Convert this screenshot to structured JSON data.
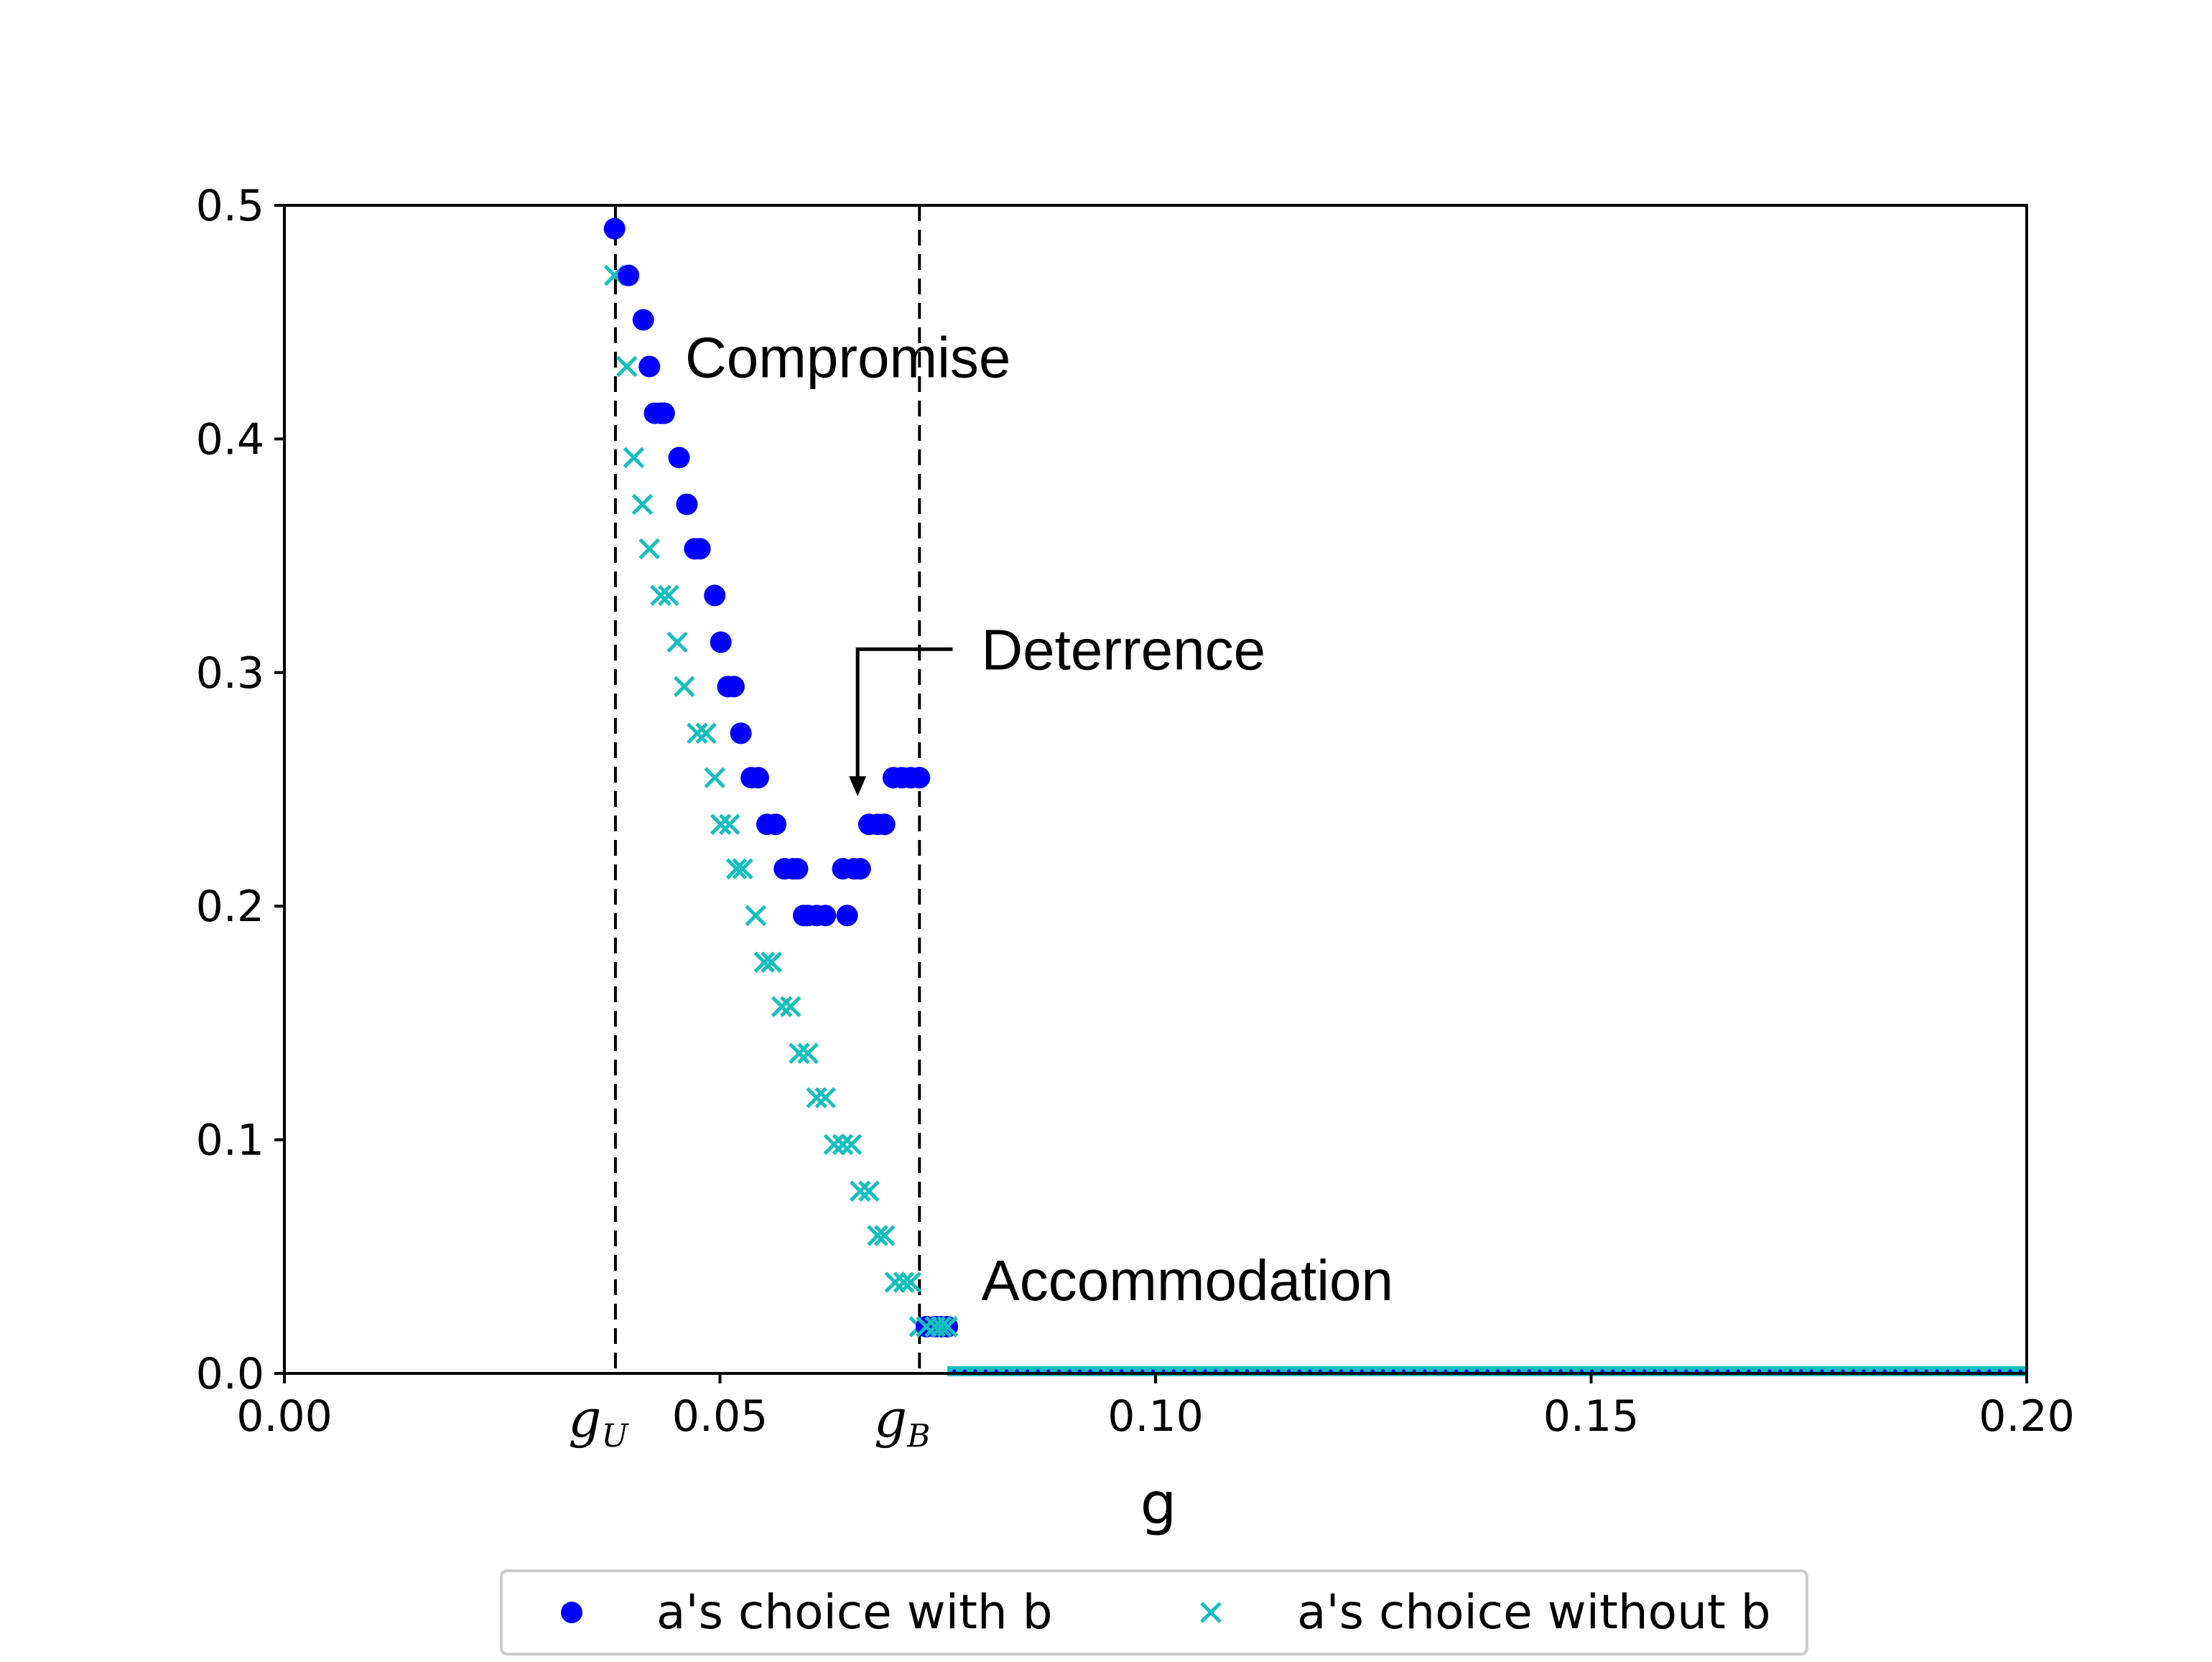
{
  "chart_data": {
    "type": "scatter",
    "xlabel": "g",
    "ylabel": "",
    "xlim": [
      0.0,
      0.2
    ],
    "ylim": [
      0.0,
      0.5
    ],
    "xticks": [
      0.0,
      0.05,
      0.1,
      0.15,
      0.2
    ],
    "xtick_labels": [
      "0.00",
      "0.05",
      "0.10",
      "0.15",
      "0.20"
    ],
    "yticks": [
      0.0,
      0.1,
      0.2,
      0.3,
      0.4,
      0.5
    ],
    "ytick_labels": [
      "0.0",
      "0.1",
      "0.2",
      "0.3",
      "0.4",
      "0.5"
    ],
    "grid": false,
    "legend_position": "bottom-center",
    "vlines": [
      {
        "x": 0.038,
        "label_main": "g",
        "label_sub": "U"
      },
      {
        "x": 0.0729,
        "label_main": "g",
        "label_sub": "B"
      }
    ],
    "annotations": [
      {
        "text": "Compromise",
        "x": 0.046,
        "y": 0.435
      },
      {
        "text": "Deterrence",
        "x": 0.08,
        "y": 0.31,
        "arrow_to": [
          0.0658,
          0.247
        ]
      },
      {
        "text": "Accommodation",
        "x": 0.08,
        "y": 0.04
      }
    ],
    "series": [
      {
        "name": "a's choice with b",
        "marker": "circle",
        "color": "#0000ff",
        "x": [
          0.0379,
          0.0395,
          0.0412,
          0.0419,
          0.0425,
          0.0432,
          0.0436,
          0.0453,
          0.0462,
          0.0471,
          0.0477,
          0.0494,
          0.0501,
          0.0509,
          0.0516,
          0.0524,
          0.0536,
          0.0544,
          0.0554,
          0.0564,
          0.0574,
          0.0584,
          0.0589,
          0.0596,
          0.0601,
          0.0611,
          0.0621,
          0.0641,
          0.0646,
          0.0654,
          0.0661,
          0.0671,
          0.0681,
          0.0689,
          0.0699,
          0.0709,
          0.0719,
          0.0729,
          0.0737,
          0.0747,
          0.0754,
          0.0761
        ],
        "y": [
          0.49,
          0.47,
          0.451,
          0.431,
          0.411,
          0.411,
          0.411,
          0.392,
          0.372,
          0.353,
          0.353,
          0.333,
          0.313,
          0.294,
          0.294,
          0.274,
          0.255,
          0.255,
          0.235,
          0.235,
          0.216,
          0.216,
          0.216,
          0.196,
          0.196,
          0.196,
          0.196,
          0.216,
          0.196,
          0.216,
          0.216,
          0.235,
          0.235,
          0.235,
          0.255,
          0.255,
          0.255,
          0.255,
          0.02,
          0.02,
          0.02,
          0.02
        ]
      },
      {
        "name": "a's choice without b",
        "marker": "x",
        "color": "#17bebe",
        "x": [
          0.0379,
          0.0393,
          0.0401,
          0.0411,
          0.0419,
          0.0432,
          0.0441,
          0.0451,
          0.0459,
          0.0474,
          0.0484,
          0.0494,
          0.0501,
          0.0511,
          0.0519,
          0.0526,
          0.0541,
          0.0551,
          0.0559,
          0.0571,
          0.0581,
          0.0591,
          0.0601,
          0.0611,
          0.0621,
          0.0631,
          0.0641,
          0.0651,
          0.0661,
          0.0671,
          0.0681,
          0.0689,
          0.0701,
          0.0711,
          0.0719,
          0.0729,
          0.0737,
          0.0747,
          0.0754,
          0.0761
        ],
        "y": [
          0.47,
          0.431,
          0.392,
          0.372,
          0.353,
          0.333,
          0.333,
          0.313,
          0.294,
          0.274,
          0.274,
          0.255,
          0.235,
          0.235,
          0.216,
          0.216,
          0.196,
          0.176,
          0.176,
          0.157,
          0.157,
          0.137,
          0.137,
          0.118,
          0.118,
          0.098,
          0.098,
          0.098,
          0.078,
          0.078,
          0.059,
          0.059,
          0.039,
          0.039,
          0.039,
          0.02,
          0.02,
          0.02,
          0.02,
          0.02
        ]
      }
    ],
    "zero_region": {
      "x_start": 0.0761,
      "x_end": 0.2,
      "y": 0.0
    }
  }
}
